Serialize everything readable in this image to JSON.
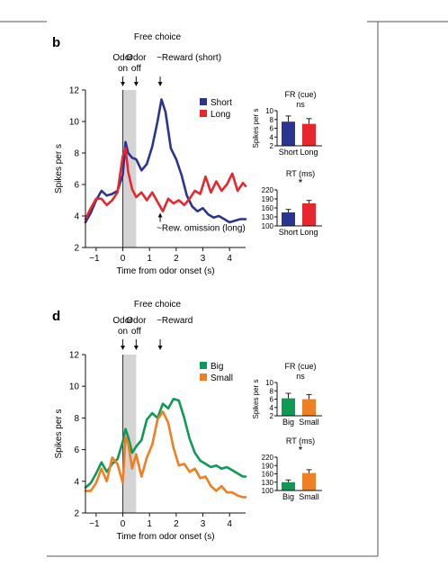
{
  "chart_data": [
    {
      "panel_label": "b",
      "type": "line",
      "title": "Free choice",
      "xlabel": "Time from odor onset (s)",
      "ylabel": "Spikes per s",
      "xlim": [
        -1.4,
        4.6
      ],
      "ylim": [
        2,
        12
      ],
      "xticks": [
        -1,
        0,
        1,
        2,
        3,
        4
      ],
      "yticks": [
        2,
        4,
        6,
        8,
        10,
        12
      ],
      "shaded_interval": [
        0,
        0.5
      ],
      "event_labels": [
        {
          "text": "Odor on",
          "line1": "Odor",
          "line2": "on",
          "x": 0
        },
        {
          "text": "Odor off",
          "line1": "Odor",
          "line2": "off",
          "x": 0.5
        },
        {
          "text": "~Reward (short)",
          "line1": "~Reward (short)",
          "line2": "",
          "x": 1.4
        }
      ],
      "annotation": {
        "text": "~Rew. omission (long)",
        "x": 1.4,
        "y": 4.2
      },
      "legend": [
        "Short",
        "Long"
      ],
      "series": [
        {
          "name": "Short",
          "color": "#2b3591",
          "x": [
            -1.4,
            -1.2,
            -1.0,
            -0.8,
            -0.6,
            -0.4,
            -0.2,
            0.0,
            0.1,
            0.2,
            0.35,
            0.5,
            0.7,
            0.9,
            1.1,
            1.3,
            1.45,
            1.6,
            1.8,
            2.0,
            2.2,
            2.4,
            2.6,
            2.8,
            3.0,
            3.2,
            3.4,
            3.6,
            3.8,
            4.0,
            4.2,
            4.4,
            4.6
          ],
          "y": [
            3.6,
            4.2,
            5.0,
            5.6,
            5.3,
            5.4,
            5.6,
            6.6,
            8.7,
            8.0,
            7.7,
            7.6,
            6.9,
            7.3,
            8.4,
            10.0,
            11.4,
            10.6,
            8.3,
            7.6,
            6.6,
            5.3,
            4.6,
            4.3,
            4.5,
            4.1,
            3.9,
            4.0,
            3.8,
            3.6,
            3.7,
            3.8,
            3.8
          ]
        },
        {
          "name": "Long",
          "color": "#e8262d",
          "x": [
            -1.4,
            -1.2,
            -1.0,
            -0.8,
            -0.6,
            -0.4,
            -0.2,
            0.0,
            0.1,
            0.2,
            0.35,
            0.5,
            0.7,
            0.9,
            1.1,
            1.3,
            1.5,
            1.7,
            1.9,
            2.1,
            2.3,
            2.5,
            2.7,
            2.9,
            3.1,
            3.3,
            3.5,
            3.7,
            3.9,
            4.1,
            4.3,
            4.5,
            4.6
          ],
          "y": [
            3.8,
            4.5,
            5.1,
            5.1,
            4.7,
            5.0,
            5.5,
            7.8,
            8.3,
            6.8,
            5.7,
            5.2,
            5.5,
            5.0,
            5.5,
            4.9,
            4.3,
            5.1,
            4.8,
            5.0,
            4.7,
            5.1,
            5.6,
            5.4,
            6.5,
            5.5,
            6.2,
            5.6,
            6.0,
            6.7,
            5.6,
            6.1,
            5.9
          ]
        }
      ],
      "insets": [
        {
          "title": "FR (cue)",
          "ylabel": "Spikes per s",
          "yticks": [
            2,
            4,
            6,
            8,
            10
          ],
          "ylim": [
            2,
            10
          ],
          "significance": "ns",
          "bars": [
            {
              "category": "Short",
              "value": 7.5,
              "error": 1.3,
              "color": "#2b3591"
            },
            {
              "category": "Long",
              "value": 7.0,
              "error": 1.2,
              "color": "#e8262d"
            }
          ]
        },
        {
          "title": "RT (ms)",
          "ylabel": "",
          "yticks": [
            100,
            130,
            160,
            190,
            220
          ],
          "ylim": [
            100,
            220
          ],
          "significance": "*",
          "bars": [
            {
              "category": "Short",
              "value": 145,
              "error": 10,
              "color": "#2b3591"
            },
            {
              "category": "Long",
              "value": 175,
              "error": 10,
              "color": "#e8262d"
            }
          ]
        }
      ]
    },
    {
      "panel_label": "d",
      "type": "line",
      "title": "Free choice",
      "xlabel": "Time from odor onset (s)",
      "ylabel": "Spikes per s",
      "xlim": [
        -1.4,
        4.6
      ],
      "ylim": [
        2,
        12
      ],
      "xticks": [
        -1,
        0,
        1,
        2,
        3,
        4
      ],
      "yticks": [
        2,
        4,
        6,
        8,
        10,
        12
      ],
      "shaded_interval": [
        0,
        0.5
      ],
      "event_labels": [
        {
          "text": "Odor on",
          "line1": "Odor",
          "line2": "on",
          "x": 0
        },
        {
          "text": "Odor off",
          "line1": "Odor",
          "line2": "off",
          "x": 0.5
        },
        {
          "text": "~Reward",
          "line1": "~Reward",
          "line2": "",
          "x": 1.4
        }
      ],
      "annotation": null,
      "legend": [
        "Big",
        "Small"
      ],
      "series": [
        {
          "name": "Big",
          "color": "#0e9a55",
          "x": [
            -1.4,
            -1.2,
            -1.0,
            -0.8,
            -0.6,
            -0.4,
            -0.2,
            0.0,
            0.1,
            0.2,
            0.35,
            0.5,
            0.7,
            0.9,
            1.1,
            1.3,
            1.5,
            1.7,
            1.9,
            2.1,
            2.3,
            2.5,
            2.7,
            2.9,
            3.1,
            3.3,
            3.5,
            3.7,
            3.9,
            4.1,
            4.3,
            4.5,
            4.6
          ],
          "y": [
            3.6,
            3.9,
            4.5,
            5.2,
            4.6,
            5.1,
            5.4,
            6.5,
            7.3,
            6.8,
            5.8,
            6.2,
            6.6,
            7.9,
            8.3,
            8.0,
            8.9,
            8.6,
            9.2,
            9.1,
            8.0,
            6.7,
            5.8,
            5.3,
            5.1,
            4.9,
            5.0,
            4.8,
            4.9,
            4.7,
            4.5,
            4.3,
            4.3
          ]
        },
        {
          "name": "Small",
          "color": "#f07f23",
          "x": [
            -1.4,
            -1.2,
            -1.0,
            -0.8,
            -0.6,
            -0.4,
            -0.2,
            0.0,
            0.1,
            0.2,
            0.35,
            0.5,
            0.7,
            0.9,
            1.1,
            1.3,
            1.5,
            1.7,
            1.9,
            2.1,
            2.3,
            2.5,
            2.7,
            2.9,
            3.1,
            3.3,
            3.5,
            3.7,
            3.9,
            4.1,
            4.3,
            4.5,
            4.6
          ],
          "y": [
            3.4,
            3.4,
            3.9,
            4.8,
            4.0,
            5.5,
            5.1,
            3.9,
            6.8,
            6.4,
            4.8,
            5.7,
            4.3,
            5.5,
            6.3,
            7.9,
            8.4,
            7.7,
            6.1,
            5.0,
            5.1,
            4.6,
            4.8,
            4.2,
            4.3,
            3.7,
            3.4,
            3.7,
            3.3,
            3.3,
            3.1,
            3.0,
            3.0
          ]
        }
      ],
      "insets": [
        {
          "title": "FR (cue)",
          "ylabel": "Spikes per s",
          "yticks": [
            2,
            4,
            6,
            8,
            10
          ],
          "ylim": [
            2,
            10
          ],
          "significance": "ns",
          "bars": [
            {
              "category": "Big",
              "value": 6.2,
              "error": 1.2,
              "color": "#0e9a55"
            },
            {
              "category": "Small",
              "value": 6.0,
              "error": 1.1,
              "color": "#f07f23"
            }
          ]
        },
        {
          "title": "RT (ms)",
          "ylabel": "",
          "yticks": [
            100,
            130,
            160,
            190,
            220
          ],
          "ylim": [
            100,
            220
          ],
          "significance": "*",
          "bars": [
            {
              "category": "Big",
              "value": 130,
              "error": 8,
              "color": "#0e9a55"
            },
            {
              "category": "Small",
              "value": 163,
              "error": 12,
              "color": "#f07f23"
            }
          ]
        }
      ]
    }
  ]
}
